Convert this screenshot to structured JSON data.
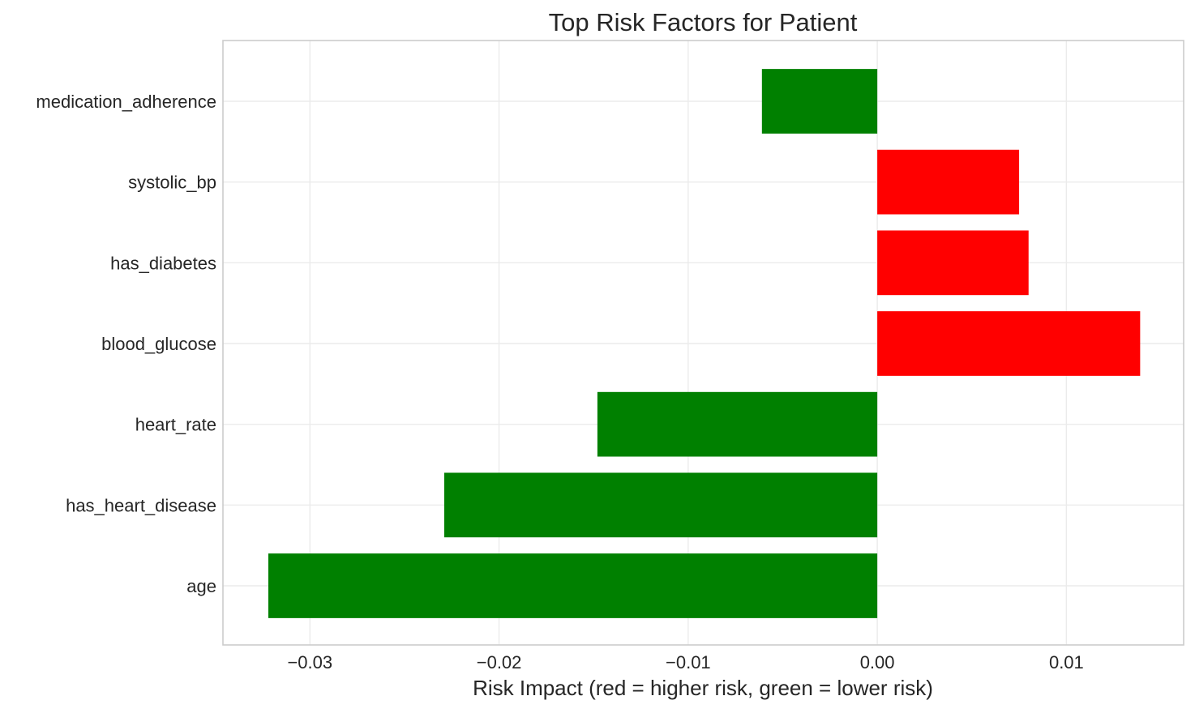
{
  "chart_data": {
    "type": "bar",
    "orientation": "horizontal",
    "title": "Top Risk Factors for Patient",
    "xlabel": "Risk Impact (red = higher risk, green = lower risk)",
    "ylabel": "",
    "categories": [
      "age",
      "has_heart_disease",
      "heart_rate",
      "blood_glucose",
      "has_diabetes",
      "systolic_bp",
      "medication_adherence"
    ],
    "values": [
      -0.0322,
      -0.0229,
      -0.0148,
      0.0139,
      0.008,
      0.0075,
      -0.0061
    ],
    "xlim": [
      -0.0346,
      0.0162
    ],
    "xticks": [
      -0.03,
      -0.02,
      -0.01,
      0.0,
      0.01
    ],
    "xtick_labels": [
      "−0.03",
      "−0.02",
      "−0.01",
      "0.00",
      "0.01"
    ],
    "colors": {
      "positive": "#ff0000",
      "negative": "#008000"
    },
    "grid": true,
    "legend": "none"
  }
}
